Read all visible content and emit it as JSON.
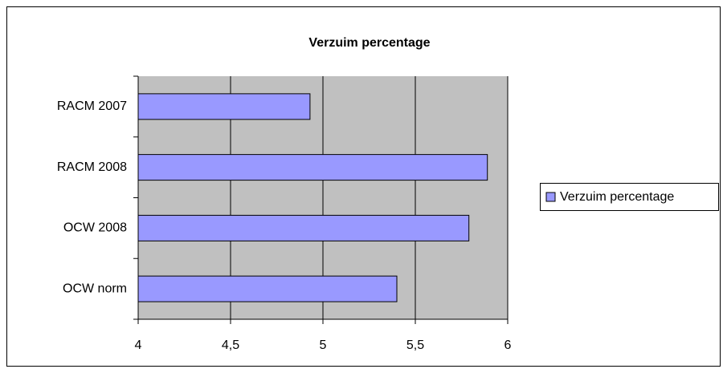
{
  "chart_data": {
    "type": "bar",
    "orientation": "horizontal",
    "title": "Verzuim percentage",
    "categories": [
      "RACM 2007",
      "RACM 2008",
      "OCW 2008",
      "OCW norm"
    ],
    "series": [
      {
        "name": "Verzuim percentage",
        "color": "#9999ff",
        "values": [
          4.93,
          5.89,
          5.79,
          5.4
        ]
      }
    ],
    "xlim": [
      4,
      6
    ],
    "xticks": [
      4,
      {
        "value": 4.5,
        "label": "4,5"
      },
      5,
      {
        "value": 5.5,
        "label": "5,5"
      },
      6
    ],
    "grid": true,
    "plot_background": "#c0c0c0",
    "legend": "right"
  }
}
